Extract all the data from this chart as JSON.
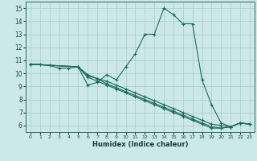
{
  "title": "",
  "xlabel": "Humidex (Indice chaleur)",
  "ylabel": "",
  "xlim": [
    -0.5,
    23.5
  ],
  "ylim": [
    5.5,
    15.5
  ],
  "yticks": [
    6,
    7,
    8,
    9,
    10,
    11,
    12,
    13,
    14,
    15
  ],
  "xticks": [
    0,
    1,
    2,
    3,
    4,
    5,
    6,
    7,
    8,
    9,
    10,
    11,
    12,
    13,
    14,
    15,
    16,
    17,
    18,
    19,
    20,
    21,
    22,
    23
  ],
  "bg_color": "#cce8e8",
  "grid_color": "#aacccc",
  "line_color": "#1a6b5a",
  "series": [
    {
      "x": [
        0,
        1,
        2,
        3,
        4,
        5,
        6,
        7,
        8,
        9,
        10,
        11,
        12,
        13,
        14,
        15,
        16,
        17,
        18,
        19,
        20,
        21,
        22,
        23
      ],
      "y": [
        10.7,
        10.7,
        10.6,
        10.4,
        10.4,
        10.5,
        9.1,
        9.3,
        9.9,
        9.5,
        10.5,
        11.5,
        13.0,
        13.0,
        15.0,
        14.5,
        13.8,
        13.8,
        9.5,
        7.6,
        6.2,
        5.9,
        6.2,
        6.1
      ]
    },
    {
      "x": [
        0,
        5,
        6,
        7,
        8,
        9,
        10,
        11,
        12,
        13,
        14,
        15,
        16,
        17,
        18,
        19,
        20,
        21,
        22,
        23
      ],
      "y": [
        10.7,
        10.5,
        9.8,
        9.6,
        9.2,
        8.9,
        8.6,
        8.3,
        8.0,
        7.7,
        7.4,
        7.1,
        6.8,
        6.5,
        6.2,
        5.9,
        5.8,
        5.9,
        6.2,
        6.1
      ]
    },
    {
      "x": [
        0,
        5,
        6,
        7,
        8,
        9,
        10,
        11,
        12,
        13,
        14,
        15,
        16,
        17,
        18,
        19,
        20,
        21,
        22,
        23
      ],
      "y": [
        10.7,
        10.5,
        9.9,
        9.6,
        9.4,
        9.1,
        8.8,
        8.5,
        8.2,
        7.9,
        7.6,
        7.3,
        7.0,
        6.7,
        6.4,
        6.1,
        6.0,
        5.9,
        6.2,
        6.1
      ]
    },
    {
      "x": [
        0,
        5,
        6,
        7,
        8,
        9,
        10,
        11,
        12,
        13,
        14,
        15,
        16,
        17,
        18,
        19,
        20,
        21,
        22,
        23
      ],
      "y": [
        10.7,
        10.5,
        9.7,
        9.4,
        9.1,
        8.8,
        8.5,
        8.2,
        7.9,
        7.6,
        7.3,
        7.0,
        6.7,
        6.4,
        6.1,
        5.8,
        5.8,
        5.9,
        6.2,
        6.1
      ]
    }
  ]
}
